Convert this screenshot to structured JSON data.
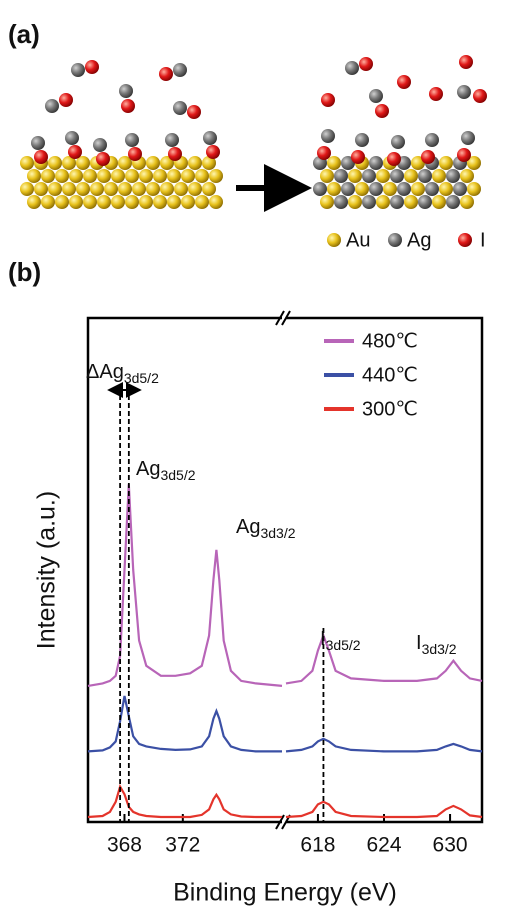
{
  "panel_labels": [
    "(a)",
    "(b)"
  ],
  "schematic": {
    "legend": [
      "Au",
      "Ag",
      "I"
    ]
  },
  "chart_data": [
    {
      "type": "line",
      "x_label": "Binding Energy (eV)",
      "y_label": "Intensity (a.u.)",
      "x": [
        365.5,
        366.5,
        367.0,
        367.4,
        367.7,
        368.0,
        368.3,
        368.6,
        369.0,
        369.5,
        370.5,
        371.5,
        372.5,
        373.3,
        373.8,
        374.1,
        374.3,
        374.5,
        374.8,
        375.3,
        376.0,
        377.0,
        378.8
      ],
      "xlim": [
        365.5,
        378.8
      ],
      "xticks": [
        368,
        372
      ],
      "ylim": [
        0,
        100
      ],
      "series": [
        {
          "color": "#b865b8",
          "values": [
            27,
            27.5,
            28,
            29,
            33,
            50,
            67,
            50,
            36,
            31,
            29,
            29,
            29.5,
            31,
            37,
            48,
            54,
            48,
            36,
            30,
            28,
            27.5,
            27
          ]
        },
        {
          "color": "#3b50a5",
          "values": [
            14,
            14.2,
            14.8,
            16,
            20,
            25,
            21,
            17,
            15.5,
            15,
            14.5,
            14.3,
            14.4,
            15,
            17,
            20.5,
            22,
            20.5,
            17,
            15,
            14.3,
            14,
            14
          ]
        },
        {
          "color": "#e4342b",
          "values": [
            1,
            1.2,
            2,
            4,
            7,
            5.5,
            3,
            2,
            1.5,
            1.2,
            1,
            1,
            1,
            1.4,
            2.5,
            4.5,
            5.4,
            4.5,
            2.5,
            1.5,
            1.1,
            1,
            1
          ]
        }
      ],
      "reference_lines": [
        367.7,
        368.3
      ],
      "annotations": [
        {
          "text": "ΔAg",
          "sub": "3d5/2"
        },
        {
          "text": "Ag",
          "sub": "3d5/2"
        },
        {
          "text": "Ag",
          "sub": "3d3/2"
        }
      ]
    },
    {
      "type": "line",
      "x": [
        615.1,
        616.5,
        617.5,
        618.0,
        618.5,
        619.0,
        619.6,
        621,
        624,
        627,
        628.8,
        629.6,
        630.3,
        631.0,
        631.8,
        632.9
      ],
      "xlim": [
        615.1,
        632.9
      ],
      "xticks": [
        618,
        624,
        630
      ],
      "ylim": [
        0,
        100
      ],
      "series": [
        {
          "name": "480℃",
          "color": "#b865b8",
          "values": [
            27.5,
            28,
            30,
            34,
            37,
            34,
            30,
            28.5,
            28,
            28,
            28.5,
            30,
            32,
            30,
            28.5,
            28
          ]
        },
        {
          "name": "440℃",
          "color": "#3b50a5",
          "values": [
            14,
            14.3,
            15,
            16,
            16.5,
            16,
            15,
            14.3,
            14,
            14,
            14.3,
            15,
            15.5,
            15,
            14.3,
            14
          ]
        },
        {
          "name": "300℃",
          "color": "#e4342b",
          "values": [
            1,
            1.2,
            2,
            3.5,
            4,
            3.5,
            2,
            1.2,
            1,
            1,
            1.2,
            2.5,
            3.2,
            2.5,
            1.3,
            1
          ]
        }
      ],
      "legend": "upper right",
      "reference_lines": [
        618.5
      ],
      "annotations": [
        {
          "text": "I",
          "sub": "3d5/2"
        },
        {
          "text": "I",
          "sub": "3d3/2"
        }
      ]
    }
  ]
}
